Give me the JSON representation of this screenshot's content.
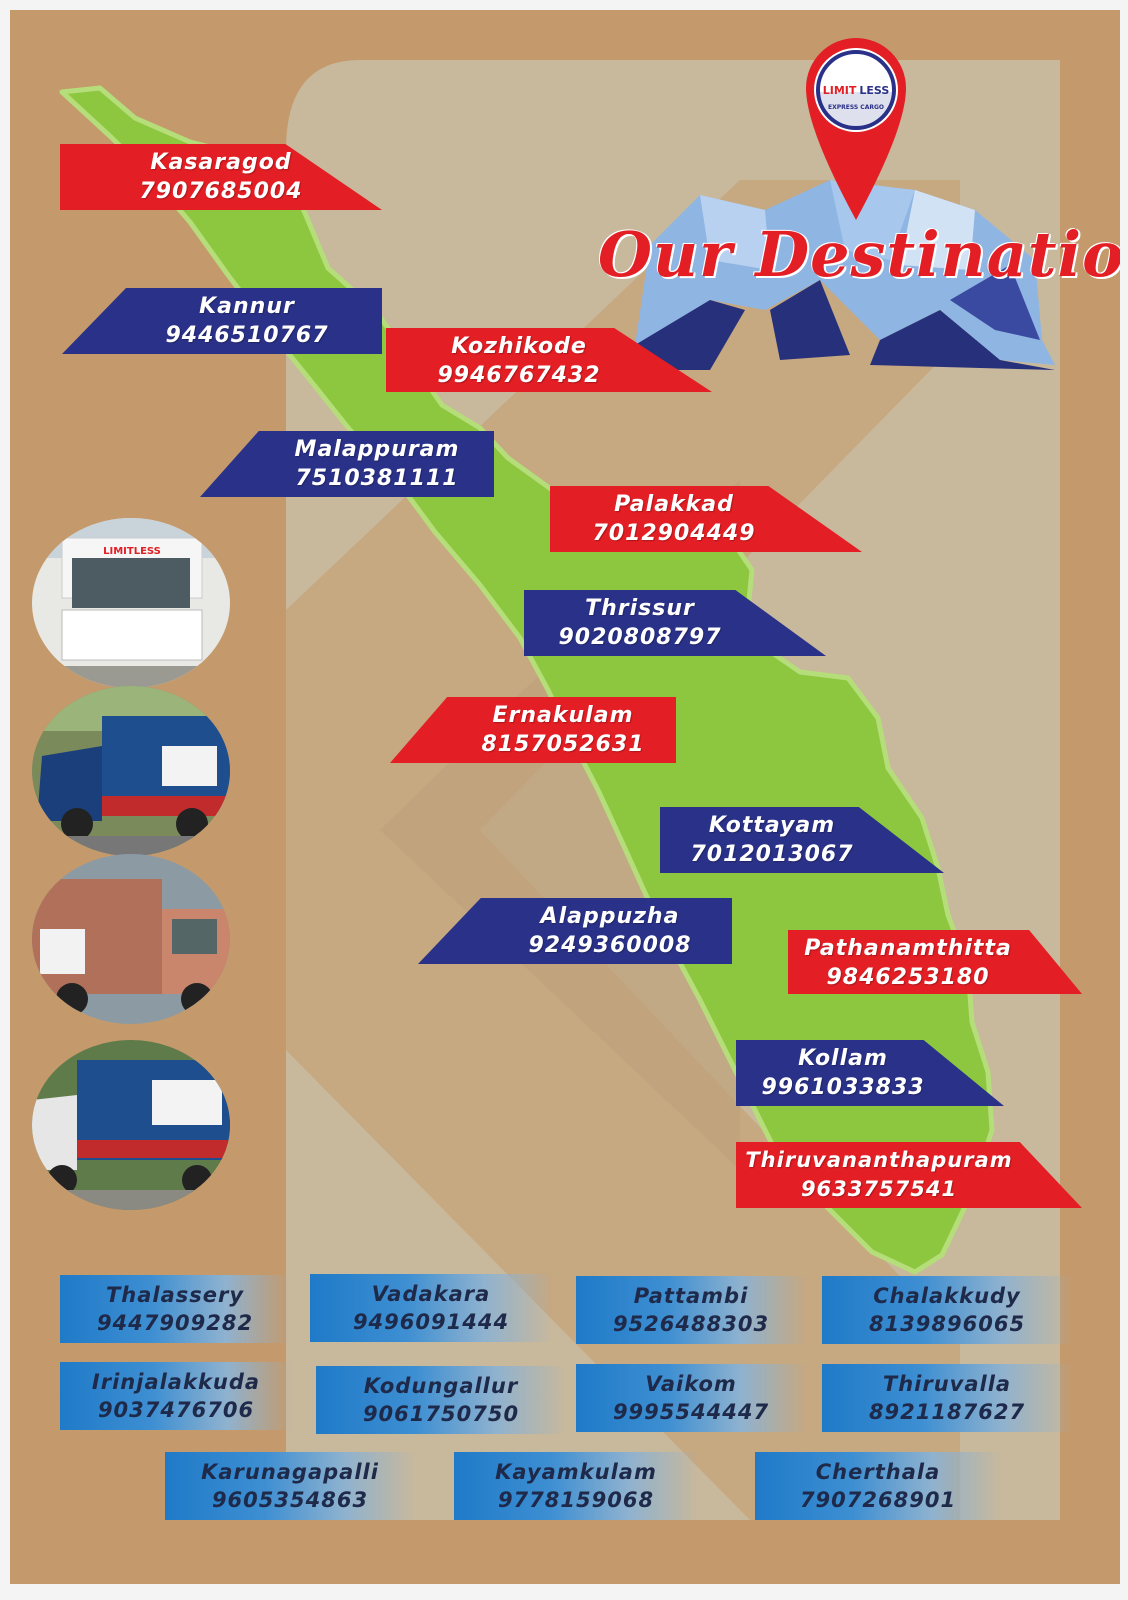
{
  "title": "Our Destinations",
  "brand": {
    "logo_text_1": "LIMIT",
    "logo_text_2": "LESS",
    "logo_sub": "EXPRESS CARGO",
    "colors": {
      "red": "#e31e24",
      "navy": "#2a3188",
      "map_green": "#8dc63f",
      "bg": "#c49a6c"
    }
  },
  "main_destinations": [
    {
      "name": "Kasaragod",
      "phone": "7907685004"
    },
    {
      "name": "Kannur",
      "phone": "9446510767"
    },
    {
      "name": "Kozhikode",
      "phone": "9946767432"
    },
    {
      "name": "Malappuram",
      "phone": "7510381111"
    },
    {
      "name": "Palakkad",
      "phone": "7012904449"
    },
    {
      "name": "Thrissur",
      "phone": "9020808797"
    },
    {
      "name": "Ernakulam",
      "phone": "8157052631"
    },
    {
      "name": "Kottayam",
      "phone": "7012013067"
    },
    {
      "name": "Alappuzha",
      "phone": "9249360008"
    },
    {
      "name": "Pathanamthitta",
      "phone": "9846253180"
    },
    {
      "name": "Kollam",
      "phone": "9961033833"
    },
    {
      "name": "Thiruvananthapuram",
      "phone": "9633757541"
    }
  ],
  "branches": [
    {
      "name": "Thalassery",
      "phone": "9447909282"
    },
    {
      "name": "Vadakara",
      "phone": "9496091444"
    },
    {
      "name": "Pattambi",
      "phone": "9526488303"
    },
    {
      "name": "Chalakkudy",
      "phone": "8139896065"
    },
    {
      "name": "Irinjalakkuda",
      "phone": "9037476706"
    },
    {
      "name": "Kodungallur",
      "phone": "9061750750"
    },
    {
      "name": "Vaikom",
      "phone": "9995544447"
    },
    {
      "name": "Thiruvalla",
      "phone": "8921187627"
    },
    {
      "name": "Karunagapalli",
      "phone": "9605354863"
    },
    {
      "name": "Kayamkulam",
      "phone": "9778159068"
    },
    {
      "name": "Cherthala",
      "phone": "7907268901"
    }
  ]
}
